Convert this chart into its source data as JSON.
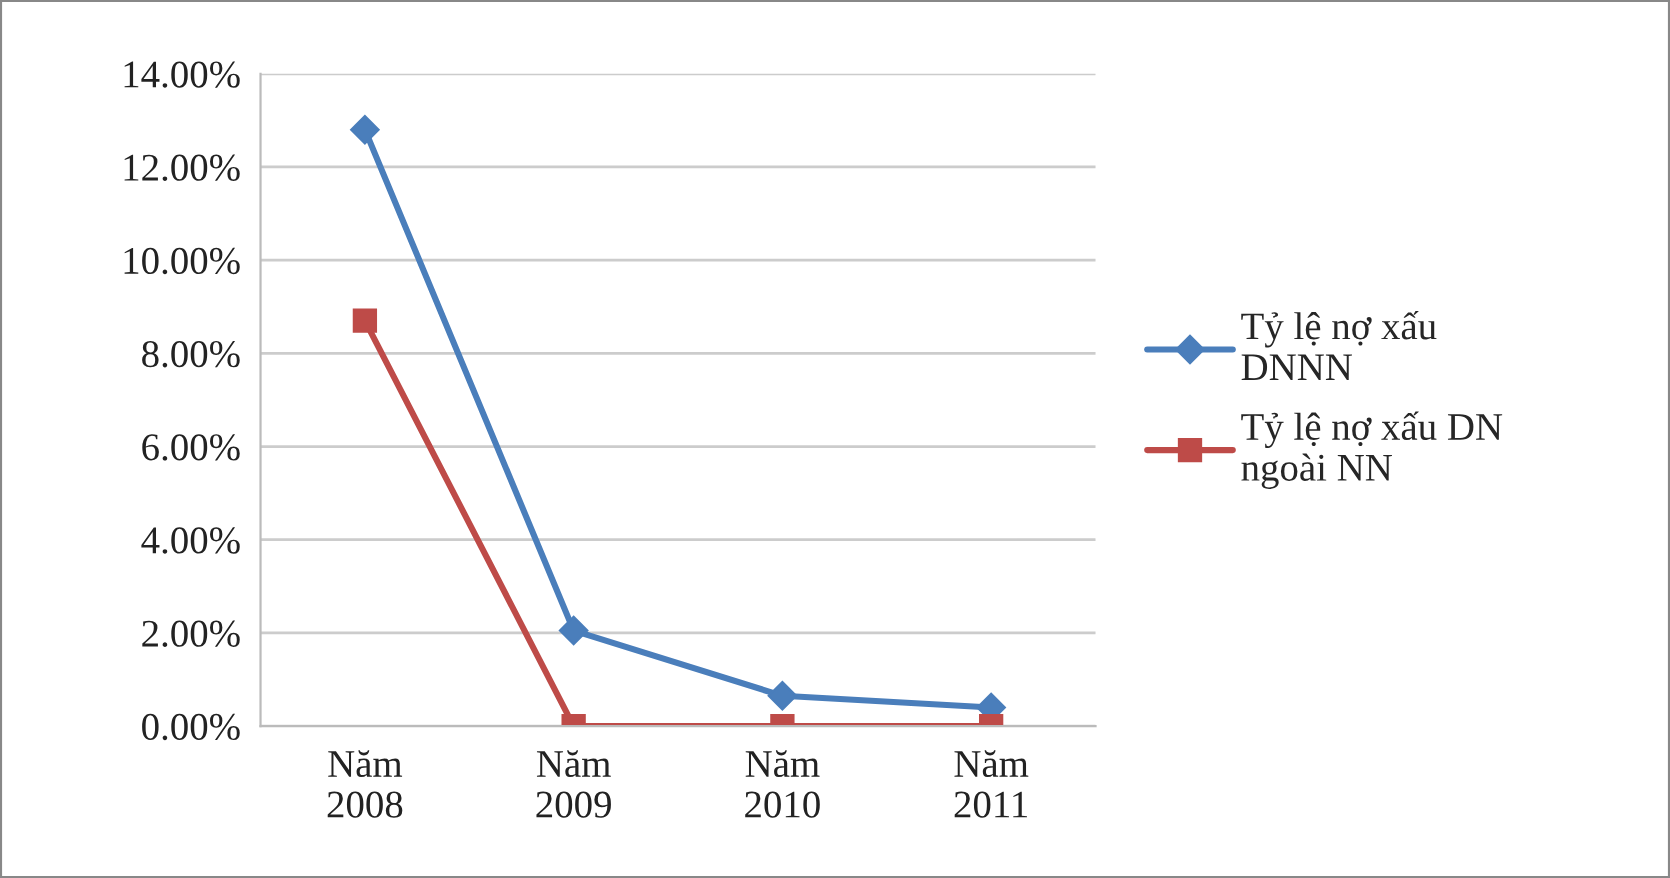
{
  "chart_data": {
    "type": "line",
    "categories": [
      "Năm\n2008",
      "Năm\n2009",
      "Năm\n2010",
      "Năm\n2011"
    ],
    "series": [
      {
        "name": "Tỷ lệ nợ xấu\nDNNN",
        "color": "#4a7ebb",
        "marker": "diamond",
        "values": [
          12.8,
          2.05,
          0.65,
          0.4
        ]
      },
      {
        "name": "Tỷ lệ nợ xấu DN\nngoài NN",
        "color": "#be4b48",
        "marker": "square",
        "values": [
          8.7,
          0,
          0,
          0
        ]
      }
    ],
    "ylim": [
      0,
      14
    ],
    "yticks": [
      {
        "value": 0,
        "label": "0.00%"
      },
      {
        "value": 2,
        "label": "2.00%"
      },
      {
        "value": 4,
        "label": "4.00%"
      },
      {
        "value": 6,
        "label": "6.00%"
      },
      {
        "value": 8,
        "label": "8.00%"
      },
      {
        "value": 10,
        "label": "10.00%"
      },
      {
        "value": 12,
        "label": "12.00%"
      },
      {
        "value": 14,
        "label": "14.00%"
      }
    ],
    "grid": "y",
    "legend": "right",
    "line_style": "solid"
  }
}
